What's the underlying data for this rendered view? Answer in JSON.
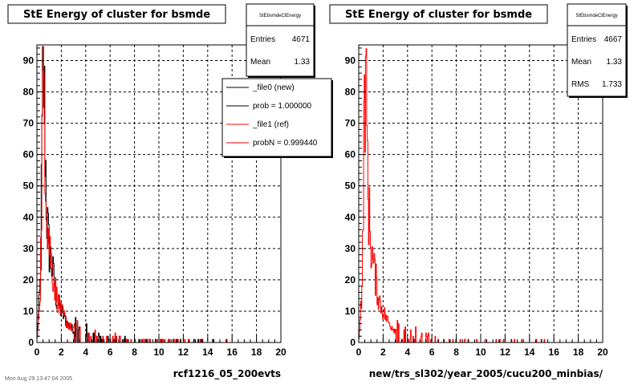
{
  "footer_text": "Mon Aug 29 13:47:04 2005",
  "chart_data": [
    {
      "type": "histogram",
      "title": "StE Energy of cluster for bsmde",
      "xlabel": "rcf1216_05_200evts",
      "ylabel": "",
      "xlim": [
        0,
        20
      ],
      "ylim": [
        0,
        95
      ],
      "xticks": [
        "0",
        "2",
        "4",
        "6",
        "8",
        "10",
        "12",
        "14",
        "16",
        "18",
        "20"
      ],
      "yticks": [
        "0",
        "10",
        "20",
        "30",
        "40",
        "50",
        "60",
        "70",
        "80",
        "90"
      ],
      "grid": true,
      "stats": {
        "name": "StEbsmdeClEnergy",
        "rows": [
          {
            "label": "Entries",
            "value": "4671"
          },
          {
            "label": "Mean",
            "value": "1.33"
          }
        ]
      },
      "legend": {
        "position": "top-right",
        "entries": [
          {
            "label": "_file0 (new)",
            "color": "#000000"
          },
          {
            "label": "prob = 1.000000",
            "color": "#000000"
          },
          {
            "label": "_file1 (ref)",
            "color": "#ff0000"
          },
          {
            "label": "probN = 0.999440",
            "color": "#ff0000"
          }
        ]
      },
      "series": [
        {
          "name": "_file0 (new)",
          "color": "#000000",
          "x": [
            0.3,
            0.4,
            0.5,
            0.6,
            0.7,
            0.8,
            0.9,
            1.0,
            1.2,
            1.4,
            1.6,
            1.8,
            2.0,
            2.5,
            3.0,
            3.5,
            4.0,
            5.0,
            6.0,
            8.0,
            10.0,
            14.0,
            20.0
          ],
          "y": [
            20,
            55,
            92,
            80,
            60,
            42,
            35,
            30,
            25,
            20,
            14,
            12,
            10,
            6,
            4,
            2.5,
            2,
            1.2,
            0.8,
            0.5,
            0.3,
            0.2,
            0
          ]
        },
        {
          "name": "_file1 (ref)",
          "color": "#ff0000",
          "x": [
            0.3,
            0.4,
            0.5,
            0.6,
            0.7,
            0.8,
            0.9,
            1.0,
            1.2,
            1.4,
            1.6,
            1.8,
            2.0,
            2.5,
            3.0,
            3.5,
            4.0,
            5.0,
            6.0,
            8.0,
            10.0,
            14.0,
            20.0
          ],
          "y": [
            20,
            55,
            87,
            78,
            63,
            45,
            37,
            32,
            25,
            20,
            15,
            12,
            10,
            6,
            4,
            2.5,
            2,
            1.2,
            0.8,
            0.5,
            0.3,
            0.2,
            0
          ]
        }
      ]
    },
    {
      "type": "histogram",
      "title": "StE Energy of cluster for bsmde",
      "xlabel": "new/trs_sl302/year_2005/cucu200_minbias/",
      "ylabel": "",
      "xlim": [
        0,
        20
      ],
      "ylim": [
        0,
        95
      ],
      "xticks": [
        "0",
        "2",
        "4",
        "6",
        "8",
        "10",
        "12",
        "14",
        "16",
        "18",
        "20"
      ],
      "yticks": [
        "0",
        "10",
        "20",
        "30",
        "40",
        "50",
        "60",
        "70",
        "80",
        "90"
      ],
      "grid": true,
      "stats": {
        "name": "StEbsmdeClEnergy",
        "rows": [
          {
            "label": "Entries",
            "value": "4667"
          },
          {
            "label": "Mean",
            "value": "1.33"
          },
          {
            "label": "RMS",
            "value": "1.733"
          }
        ]
      },
      "series": [
        {
          "name": "",
          "color": "#ff0000",
          "x": [
            0.3,
            0.4,
            0.5,
            0.6,
            0.7,
            0.8,
            0.9,
            1.0,
            1.2,
            1.4,
            1.6,
            1.8,
            2.0,
            2.5,
            3.0,
            3.5,
            4.0,
            5.0,
            6.0,
            8.0,
            10.0,
            14.0,
            20.0
          ],
          "y": [
            20,
            55,
            88,
            78,
            63,
            45,
            37,
            32,
            25,
            20,
            15,
            12,
            10,
            6,
            4,
            2.5,
            2,
            1.2,
            0.8,
            0.5,
            0.3,
            0.2,
            0
          ]
        }
      ]
    }
  ]
}
